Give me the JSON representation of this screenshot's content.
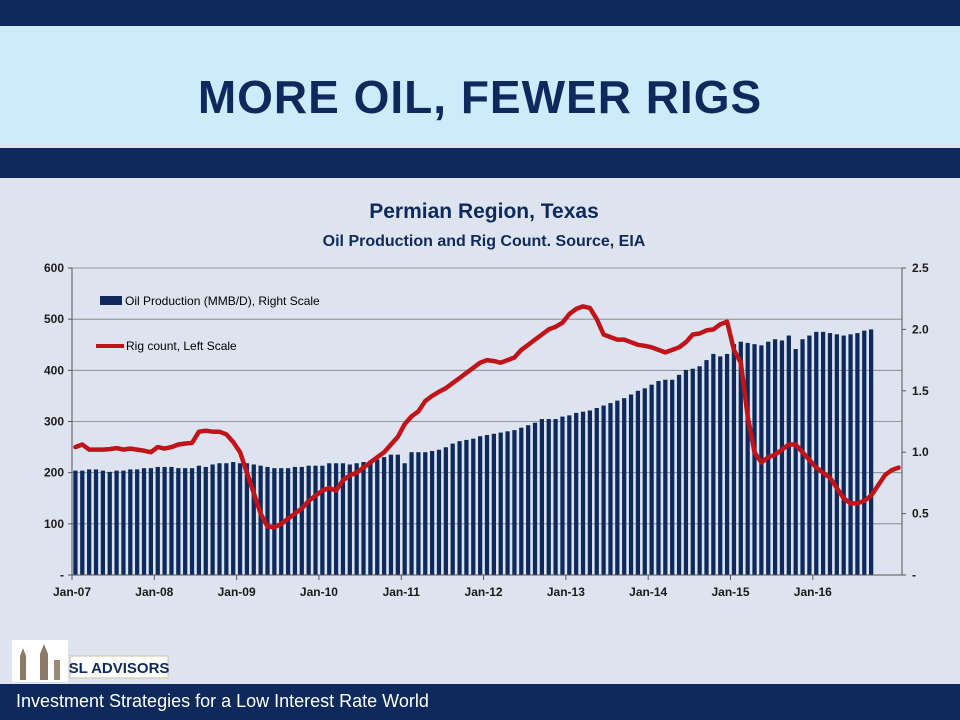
{
  "slide": {
    "title": "MORE OIL, FEWER RIGS",
    "footer": "Investment Strategies for a Low Interest Rate World",
    "logo_text": "SL ADVISORS"
  },
  "colors": {
    "navy": "#0e2a5c",
    "bar": "#0e2a5c",
    "line": "#c0141a",
    "title_bg": "#cdebfa",
    "chart_bg": "#dde4ef"
  },
  "chart_data": {
    "type": "bar",
    "title": "Permian Region, Texas",
    "subtitle": "Oil Production and Rig Count. Source, EIA",
    "x_tick_labels": [
      "Jan-07",
      "Jan-08",
      "Jan-09",
      "Jan-10",
      "Jan-11",
      "Jan-12",
      "Jan-13",
      "Jan-14",
      "Jan-15",
      "Jan-16"
    ],
    "left_axis": {
      "ylim": [
        0,
        600
      ],
      "ticks": [
        "-",
        "100",
        "200",
        "300",
        "400",
        "500",
        "600"
      ]
    },
    "right_axis": {
      "ylim": [
        0,
        2.5
      ],
      "ticks": [
        "-",
        "0.5",
        "1.0",
        "1.5",
        "2.0",
        "2.5"
      ]
    },
    "grid": true,
    "legend_position": "top-left",
    "series": [
      {
        "name": "Oil Production (MMB/D), Right Scale",
        "type": "bar",
        "axis": "right",
        "start": "Jan-07",
        "frequency": "monthly",
        "values": [
          0.85,
          0.85,
          0.86,
          0.86,
          0.85,
          0.84,
          0.85,
          0.85,
          0.86,
          0.86,
          0.87,
          0.87,
          0.88,
          0.88,
          0.88,
          0.87,
          0.87,
          0.87,
          0.89,
          0.88,
          0.9,
          0.91,
          0.91,
          0.92,
          0.91,
          0.91,
          0.9,
          0.89,
          0.88,
          0.87,
          0.87,
          0.87,
          0.88,
          0.88,
          0.89,
          0.89,
          0.89,
          0.91,
          0.91,
          0.91,
          0.9,
          0.91,
          0.92,
          0.93,
          0.94,
          0.96,
          0.98,
          0.98,
          0.91,
          1.0,
          1.0,
          1.0,
          1.01,
          1.02,
          1.04,
          1.07,
          1.09,
          1.1,
          1.11,
          1.13,
          1.14,
          1.15,
          1.16,
          1.17,
          1.18,
          1.2,
          1.22,
          1.24,
          1.27,
          1.27,
          1.27,
          1.29,
          1.3,
          1.32,
          1.33,
          1.34,
          1.36,
          1.38,
          1.4,
          1.42,
          1.44,
          1.47,
          1.5,
          1.52,
          1.55,
          1.58,
          1.59,
          1.59,
          1.63,
          1.67,
          1.68,
          1.7,
          1.75,
          1.8,
          1.78,
          1.8,
          1.88,
          1.9,
          1.89,
          1.88,
          1.87,
          1.9,
          1.92,
          1.91,
          1.95,
          1.84,
          1.92,
          1.95,
          1.98,
          1.98,
          1.97,
          1.96,
          1.95,
          1.96,
          1.97,
          1.99,
          2.0
        ]
      },
      {
        "name": "Rig count, Left Scale",
        "type": "line",
        "axis": "left",
        "start": "Jan-07",
        "frequency": "monthly",
        "values": [
          250,
          255,
          245,
          245,
          245,
          246,
          248,
          245,
          247,
          245,
          243,
          240,
          250,
          247,
          250,
          255,
          257,
          258,
          280,
          282,
          280,
          280,
          275,
          260,
          240,
          200,
          160,
          120,
          95,
          93,
          100,
          110,
          120,
          130,
          145,
          155,
          165,
          170,
          165,
          185,
          195,
          200,
          210,
          220,
          230,
          240,
          255,
          270,
          295,
          310,
          320,
          340,
          350,
          358,
          365,
          375,
          385,
          395,
          405,
          415,
          420,
          418,
          415,
          420,
          425,
          440,
          450,
          460,
          470,
          480,
          485,
          493,
          510,
          520,
          525,
          522,
          500,
          470,
          465,
          460,
          460,
          455,
          450,
          448,
          445,
          440,
          435,
          440,
          445,
          455,
          470,
          472,
          478,
          480,
          490,
          495,
          440,
          415,
          310,
          240,
          220,
          230,
          235,
          245,
          255,
          255,
          240,
          225,
          210,
          200,
          190,
          170,
          150,
          140,
          140,
          145,
          155,
          175,
          195,
          205,
          210
        ]
      }
    ]
  }
}
